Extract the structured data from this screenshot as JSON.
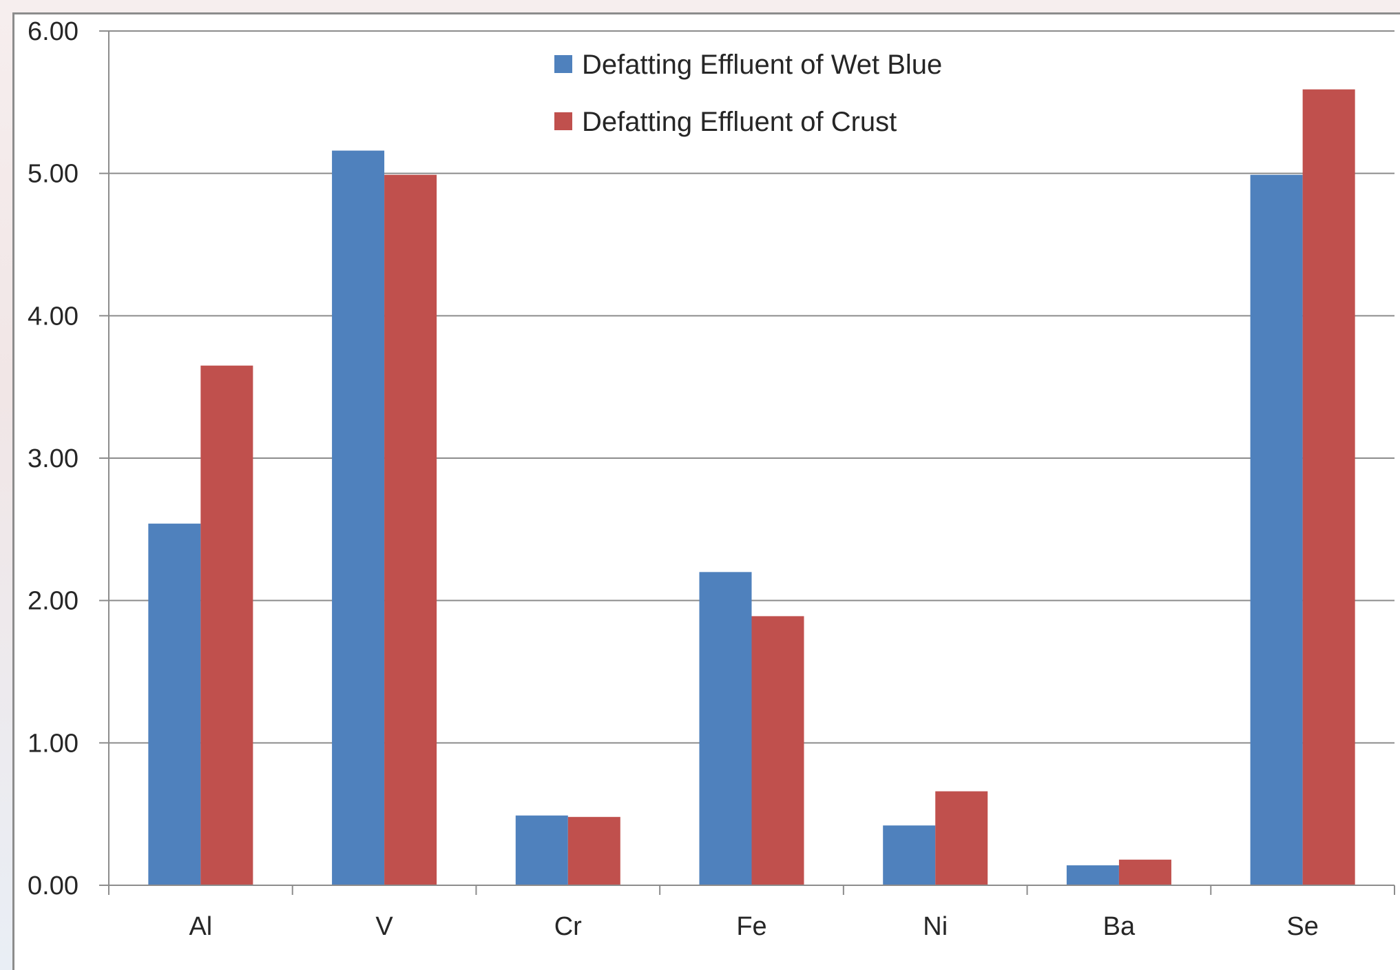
{
  "chart_data": {
    "type": "bar",
    "title": "",
    "xlabel": "",
    "ylabel": "",
    "categories": [
      "Al",
      "V",
      "Cr",
      "Fe",
      "Ni",
      "Ba",
      "Se"
    ],
    "series": [
      {
        "name": "Defatting Effluent of Wet Blue",
        "color": "#4f81bd",
        "values": [
          2.54,
          5.16,
          0.49,
          2.2,
          0.42,
          0.14,
          4.99
        ]
      },
      {
        "name": "Defatting Effluent of Crust",
        "color": "#c0504d",
        "values": [
          3.65,
          4.99,
          0.48,
          1.89,
          0.66,
          0.18,
          5.59
        ]
      }
    ],
    "ylim": [
      0,
      6
    ],
    "yticks": [
      "0.00",
      "1.00",
      "2.00",
      "3.00",
      "4.00",
      "5.00",
      "6.00"
    ],
    "grid": true,
    "legend_position": "top-center"
  }
}
